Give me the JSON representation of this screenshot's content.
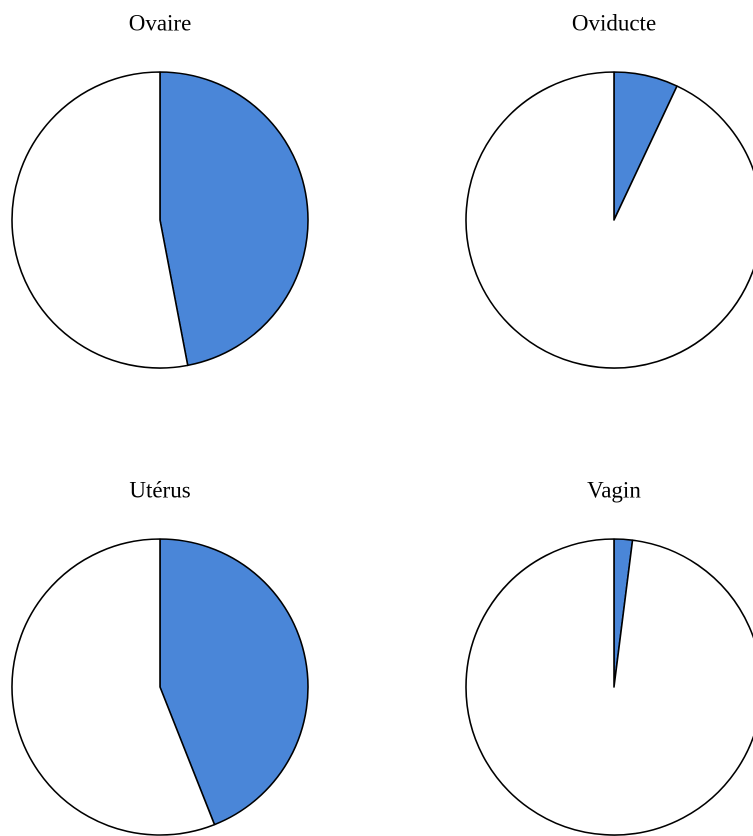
{
  "chart_data": [
    {
      "type": "pie",
      "title": "Ovaire",
      "categories": [
        null,
        null
      ],
      "values": [
        47,
        53
      ],
      "colors": [
        "#4a86d8",
        "#ffffff"
      ]
    },
    {
      "type": "pie",
      "title": "Oviducte",
      "categories": [
        null,
        null
      ],
      "values": [
        7,
        93
      ],
      "colors": [
        "#4a86d8",
        "#ffffff"
      ]
    },
    {
      "type": "pie",
      "title": "Utérus",
      "categories": [
        null,
        null
      ],
      "values": [
        44,
        56
      ],
      "colors": [
        "#4a86d8",
        "#ffffff"
      ]
    },
    {
      "type": "pie",
      "title": "Vagin",
      "categories": [
        null,
        null
      ],
      "values": [
        2,
        98
      ],
      "colors": [
        "#4a86d8",
        "#ffffff"
      ]
    }
  ]
}
